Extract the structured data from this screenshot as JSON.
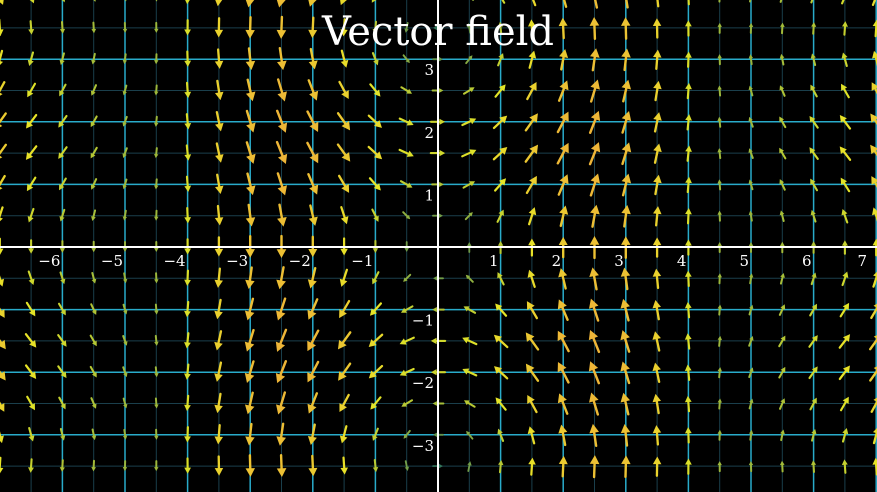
{
  "title": "Vector field",
  "x_tick_labels": [
    "−6",
    "−5",
    "−4",
    "−3",
    "−2",
    "−1",
    "1",
    "2",
    "3",
    "4",
    "5",
    "6",
    "7"
  ],
  "y_tick_labels": [
    "3",
    "2",
    "1",
    "−1",
    "−2",
    "−3"
  ],
  "colors": {
    "background": "#000000",
    "axis": "#ffffff",
    "major_grid": "#29abca",
    "minor_grid": "#1a3f4c",
    "vec_low": "#236b60",
    "vec_mid": "#e6e626",
    "vec_high": "#fc6255"
  },
  "field": "pseudo-rotational field: vertical rows/columns of arrows, red vertical bands at |x|>5, swirl near x=±4, y=±3.5"
}
